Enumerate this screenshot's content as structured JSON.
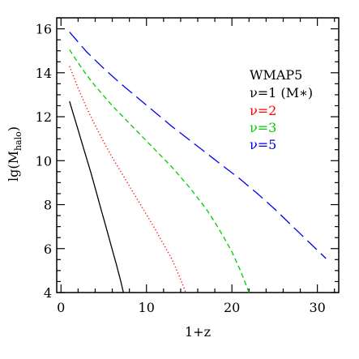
{
  "chart_data": {
    "type": "line",
    "title": "",
    "xlabel": "1+z",
    "ylabel_main": "lg(M",
    "ylabel_sub": "halo",
    "ylabel_close": ")",
    "xlim": [
      -0.5,
      32.5
    ],
    "ylim": [
      4,
      16.5
    ],
    "x_ticks": [
      0,
      10,
      20,
      30
    ],
    "y_ticks": [
      4,
      6,
      8,
      10,
      12,
      14,
      16
    ],
    "grid": false,
    "legend_title": "WMAP5",
    "legend_position": "right",
    "series": [
      {
        "name": "ν=1 (M∗)",
        "color": "#000000",
        "dash": "solid",
        "x": [
          1,
          1.5,
          2,
          2.5,
          3,
          3.5,
          4,
          4.5,
          5,
          5.5,
          6,
          6.5,
          7,
          7.3
        ],
        "y": [
          12.7,
          12.05,
          11.4,
          10.75,
          10.1,
          9.45,
          8.75,
          8.05,
          7.35,
          6.65,
          5.95,
          5.25,
          4.5,
          4.0
        ]
      },
      {
        "name": "ν=2",
        "color": "#ff0000",
        "dash": "dotted",
        "x": [
          1,
          2,
          3,
          4,
          5,
          6,
          7,
          8,
          9,
          10,
          11,
          12,
          13,
          14,
          14.6
        ],
        "y": [
          14.3,
          13.3,
          12.4,
          11.6,
          10.85,
          10.15,
          9.5,
          8.85,
          8.2,
          7.55,
          6.9,
          6.2,
          5.5,
          4.6,
          4.0
        ]
      },
      {
        "name": "ν=3",
        "color": "#00cc00",
        "dash": "short-dash",
        "x": [
          1,
          2,
          3,
          4,
          5,
          6,
          7,
          8,
          9,
          10,
          11,
          12,
          13,
          14,
          15,
          16,
          17,
          18,
          19,
          20,
          21,
          22
        ],
        "y": [
          15.05,
          14.45,
          13.9,
          13.4,
          12.95,
          12.5,
          12.1,
          11.7,
          11.3,
          10.9,
          10.5,
          10.1,
          9.7,
          9.25,
          8.8,
          8.3,
          7.8,
          7.2,
          6.55,
          5.85,
          5.0,
          4.0
        ]
      },
      {
        "name": "ν=5",
        "color": "#0000ee",
        "dash": "long-dash",
        "x": [
          1,
          3,
          5,
          7,
          9,
          11,
          13,
          15,
          17,
          19,
          21,
          23,
          25,
          27,
          29,
          31
        ],
        "y": [
          15.85,
          14.95,
          14.2,
          13.5,
          12.85,
          12.2,
          11.55,
          10.95,
          10.35,
          9.75,
          9.15,
          8.5,
          7.8,
          7.05,
          6.3,
          5.55
        ]
      }
    ]
  }
}
